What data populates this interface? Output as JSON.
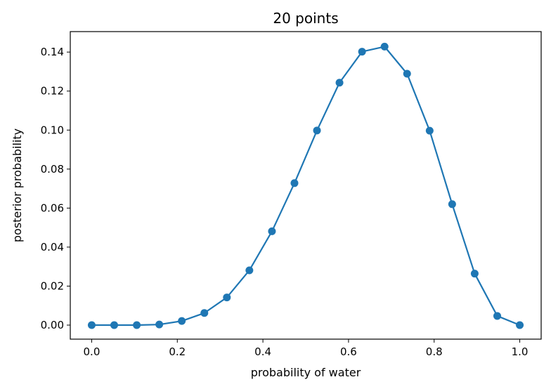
{
  "chart_data": {
    "type": "line",
    "title": "20 points",
    "xlabel": "probability of water",
    "ylabel": "posterior probability",
    "xlim": [
      -0.05,
      1.05
    ],
    "ylim": [
      -0.0072,
      0.1505
    ],
    "xticks": [
      0.0,
      0.2,
      0.4,
      0.6,
      0.8,
      1.0
    ],
    "xtick_labels": [
      "0.0",
      "0.2",
      "0.4",
      "0.6",
      "0.8",
      "1.0"
    ],
    "yticks": [
      0.0,
      0.02,
      0.04,
      0.06,
      0.08,
      0.1,
      0.12,
      0.14
    ],
    "ytick_labels": [
      "0.00",
      "0.02",
      "0.04",
      "0.06",
      "0.08",
      "0.10",
      "0.12",
      "0.14"
    ],
    "grid": false,
    "series": [
      {
        "name": "posterior",
        "color": "#1f77b4",
        "marker": "circle",
        "x": [
          0.0,
          0.0526,
          0.1053,
          0.1579,
          0.2105,
          0.2632,
          0.3158,
          0.3684,
          0.4211,
          0.4737,
          0.5263,
          0.5789,
          0.6316,
          0.6842,
          0.7368,
          0.7895,
          0.8421,
          0.8947,
          0.9474,
          1.0
        ],
        "y": [
          0.0,
          0.0,
          0.0,
          0.0003,
          0.0021,
          0.0062,
          0.0142,
          0.0281,
          0.0481,
          0.0728,
          0.0998,
          0.1243,
          0.1402,
          0.1428,
          0.1289,
          0.0997,
          0.062,
          0.0264,
          0.0047,
          0.0
        ]
      }
    ]
  }
}
